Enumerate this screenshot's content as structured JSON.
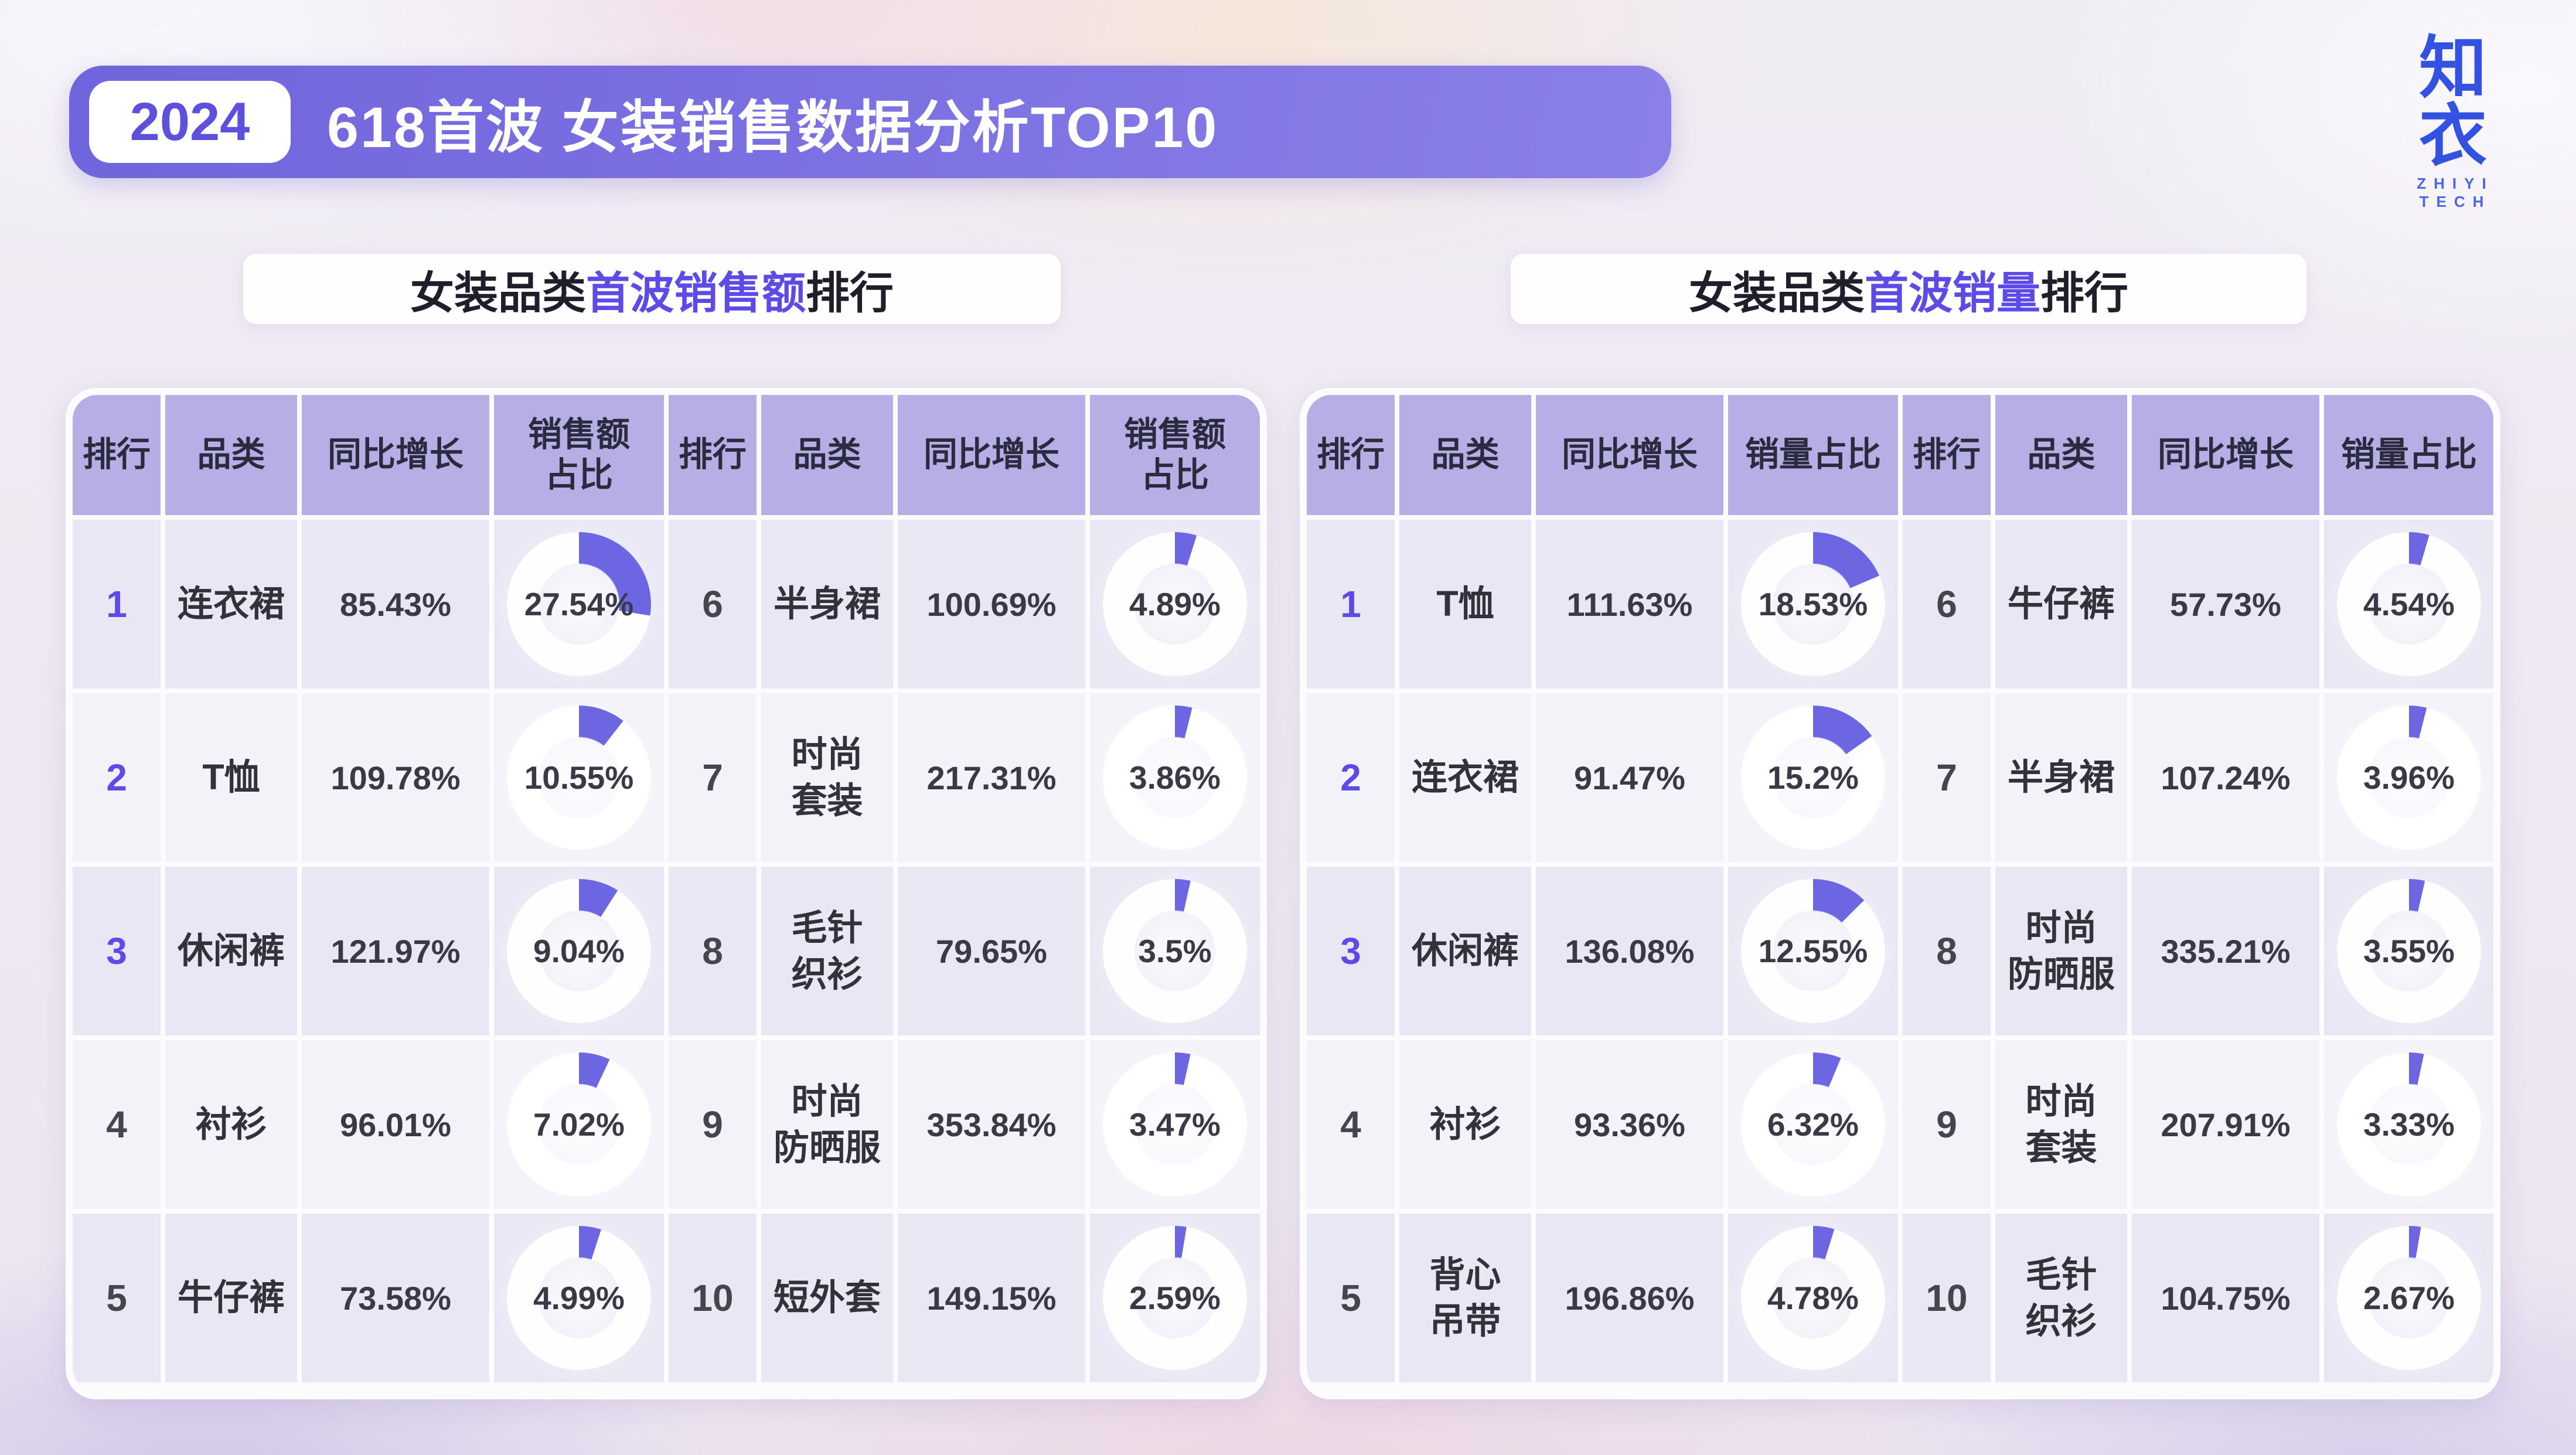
{
  "header": {
    "year": "2024",
    "title": "618首波 女装销售数据分析TOP10"
  },
  "logo": {
    "name": "知衣",
    "sub": "ZHIYI TECH"
  },
  "sections": [
    {
      "prefix": "女装品类",
      "highlight": "首波销售额",
      "suffix": "排行"
    },
    {
      "prefix": "女装品类",
      "highlight": "首波销量",
      "suffix": "排行"
    }
  ],
  "colors": {
    "banner_purple": "#7b6fe0",
    "accent_purple": "#5d4be8",
    "donut_arc": "#6d66e2",
    "header_row": "#b6aee5",
    "logo_blue": "#3352e2"
  },
  "tables": [
    {
      "headers": {
        "rank": "排行",
        "category": "品类",
        "growth": "同比增长",
        "share": "销售额\n占比"
      },
      "rows": [
        {
          "rank": "1",
          "category": "连衣裙",
          "growth": "85.43%",
          "share": "27.54%",
          "share_value": 27.54
        },
        {
          "rank": "2",
          "category": "T恤",
          "growth": "109.78%",
          "share": "10.55%",
          "share_value": 10.55
        },
        {
          "rank": "3",
          "category": "休闲裤",
          "growth": "121.97%",
          "share": "9.04%",
          "share_value": 9.04
        },
        {
          "rank": "4",
          "category": "衬衫",
          "growth": "96.01%",
          "share": "7.02%",
          "share_value": 7.02
        },
        {
          "rank": "5",
          "category": "牛仔裤",
          "growth": "73.58%",
          "share": "4.99%",
          "share_value": 4.99
        },
        {
          "rank": "6",
          "category": "半身裙",
          "growth": "100.69%",
          "share": "4.89%",
          "share_value": 4.89
        },
        {
          "rank": "7",
          "category": "时尚\n套装",
          "growth": "217.31%",
          "share": "3.86%",
          "share_value": 3.86
        },
        {
          "rank": "8",
          "category": "毛针\n织衫",
          "growth": "79.65%",
          "share": "3.5%",
          "share_value": 3.5
        },
        {
          "rank": "9",
          "category": "时尚\n防晒服",
          "growth": "353.84%",
          "share": "3.47%",
          "share_value": 3.47
        },
        {
          "rank": "10",
          "category": "短外套",
          "growth": "149.15%",
          "share": "2.59%",
          "share_value": 2.59
        }
      ]
    },
    {
      "headers": {
        "rank": "排行",
        "category": "品类",
        "growth": "同比增长",
        "share": "销量占比"
      },
      "rows": [
        {
          "rank": "1",
          "category": "T恤",
          "growth": "111.63%",
          "share": "18.53%",
          "share_value": 18.53
        },
        {
          "rank": "2",
          "category": "连衣裙",
          "growth": "91.47%",
          "share": "15.2%",
          "share_value": 15.2
        },
        {
          "rank": "3",
          "category": "休闲裤",
          "growth": "136.08%",
          "share": "12.55%",
          "share_value": 12.55
        },
        {
          "rank": "4",
          "category": "衬衫",
          "growth": "93.36%",
          "share": "6.32%",
          "share_value": 6.32
        },
        {
          "rank": "5",
          "category": "背心\n吊带",
          "growth": "196.86%",
          "share": "4.78%",
          "share_value": 4.78
        },
        {
          "rank": "6",
          "category": "牛仔裤",
          "growth": "57.73%",
          "share": "4.54%",
          "share_value": 4.54
        },
        {
          "rank": "7",
          "category": "半身裙",
          "growth": "107.24%",
          "share": "3.96%",
          "share_value": 3.96
        },
        {
          "rank": "8",
          "category": "时尚\n防晒服",
          "growth": "335.21%",
          "share": "3.55%",
          "share_value": 3.55
        },
        {
          "rank": "9",
          "category": "时尚\n套装",
          "growth": "207.91%",
          "share": "3.33%",
          "share_value": 3.33
        },
        {
          "rank": "10",
          "category": "毛针\n织衫",
          "growth": "104.75%",
          "share": "2.67%",
          "share_value": 2.67
        }
      ]
    }
  ],
  "chart_data": [
    {
      "type": "table",
      "title": "女装品类首波销售额排行",
      "columns": [
        "排行",
        "品类",
        "同比增长",
        "销售额占比"
      ],
      "rows": [
        [
          "1",
          "连衣裙",
          "85.43%",
          "27.54%"
        ],
        [
          "2",
          "T恤",
          "109.78%",
          "10.55%"
        ],
        [
          "3",
          "休闲裤",
          "121.97%",
          "9.04%"
        ],
        [
          "4",
          "衬衫",
          "96.01%",
          "7.02%"
        ],
        [
          "5",
          "牛仔裤",
          "73.58%",
          "4.99%"
        ],
        [
          "6",
          "半身裙",
          "100.69%",
          "4.89%"
        ],
        [
          "7",
          "时尚套装",
          "217.31%",
          "3.86%"
        ],
        [
          "8",
          "毛针织衫",
          "79.65%",
          "3.5%"
        ],
        [
          "9",
          "时尚防晒服",
          "353.84%",
          "3.47%"
        ],
        [
          "10",
          "短外套",
          "149.15%",
          "2.59%"
        ]
      ],
      "donut_values_percent": [
        27.54,
        10.55,
        9.04,
        7.02,
        4.99,
        4.89,
        3.86,
        3.5,
        3.47,
        2.59
      ]
    },
    {
      "type": "table",
      "title": "女装品类首波销量排行",
      "columns": [
        "排行",
        "品类",
        "同比增长",
        "销量占比"
      ],
      "rows": [
        [
          "1",
          "T恤",
          "111.63%",
          "18.53%"
        ],
        [
          "2",
          "连衣裙",
          "91.47%",
          "15.2%"
        ],
        [
          "3",
          "休闲裤",
          "136.08%",
          "12.55%"
        ],
        [
          "4",
          "衬衫",
          "93.36%",
          "6.32%"
        ],
        [
          "5",
          "背心吊带",
          "196.86%",
          "4.78%"
        ],
        [
          "6",
          "牛仔裤",
          "57.73%",
          "4.54%"
        ],
        [
          "7",
          "半身裙",
          "107.24%",
          "3.96%"
        ],
        [
          "8",
          "时尚防晒服",
          "335.21%",
          "3.55%"
        ],
        [
          "9",
          "时尚套装",
          "207.91%",
          "3.33%"
        ],
        [
          "10",
          "毛针织衫",
          "104.75%",
          "2.67%"
        ]
      ],
      "donut_values_percent": [
        18.53,
        15.2,
        12.55,
        6.32,
        4.78,
        4.54,
        3.96,
        3.55,
        3.33,
        2.67
      ]
    }
  ]
}
